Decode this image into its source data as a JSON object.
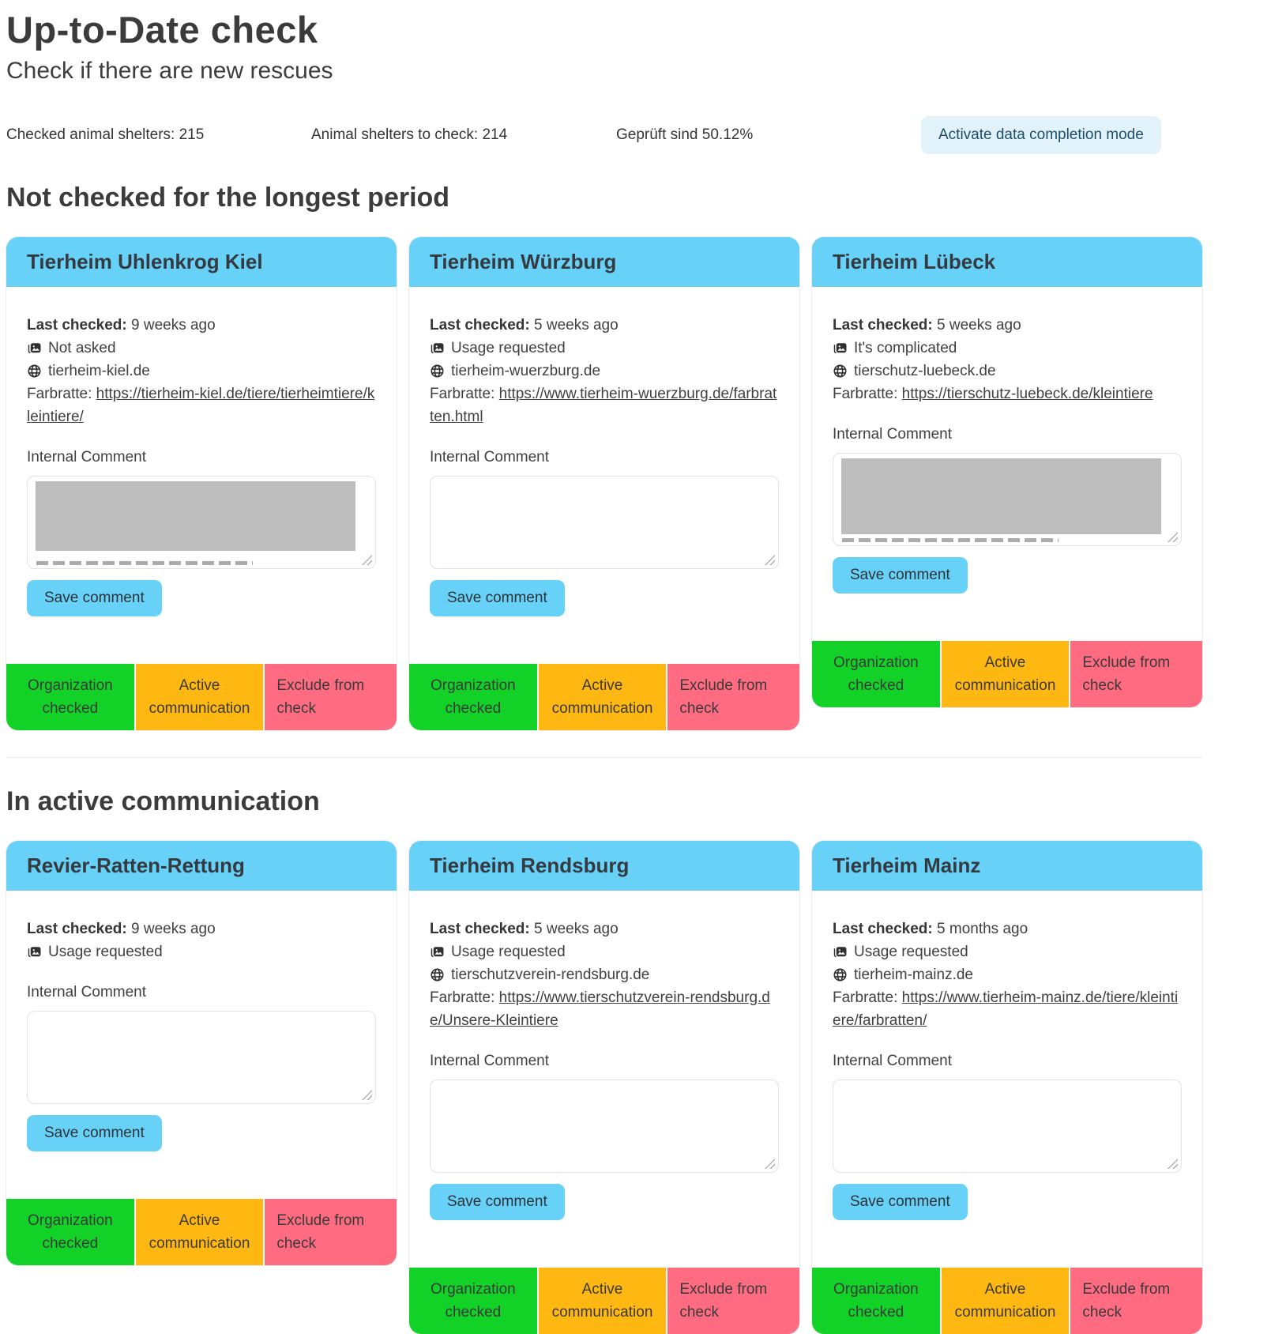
{
  "page": {
    "title": "Up-to-Date check",
    "subtitle": "Check if there are new rescues",
    "stats": [
      "Checked animal shelters: 215",
      "Animal shelters to check: 214",
      "Geprüft sind 50.12%"
    ],
    "activate_button_label": "Activate data completion mode"
  },
  "labels": {
    "last_checked": "Last checked:",
    "farbratte": "Farbratte:",
    "internal_comment": "Internal Comment",
    "save_comment": "Save comment",
    "organization_checked": "Organization checked",
    "active_communication": "Active communication",
    "exclude_from_check": "Exclude from check"
  },
  "icons": {
    "photo_status": "photo-stack-icon",
    "website": "globe-icon"
  },
  "colors": {
    "header_blue": "#67d1f7",
    "green": "#12d228",
    "orange": "#ffb812",
    "pink": "#ff6b81",
    "activate_bg": "#e1f2fb",
    "activate_text": "#1c4d67",
    "text_dark": "#3f4043",
    "redaction_gray": "#bdbdbd"
  },
  "sections": [
    {
      "title": "Not checked for the longest period",
      "cards": [
        {
          "name": "Tierheim Uhlenkrog Kiel",
          "last_checked": "9 weeks ago",
          "photo_status": "Not asked",
          "website": "tierheim-kiel.de",
          "farbratte_url": "https://tierheim-kiel.de/tiere/tierheimtiere/kleintiere/",
          "comment_redacted": true,
          "redaction_height": 88
        },
        {
          "name": "Tierheim Würzburg",
          "last_checked": "5 weeks ago",
          "photo_status": "Usage requested",
          "website": "tierheim-wuerzburg.de",
          "farbratte_url": "https://www.tierheim-wuerzburg.de/farbratten.html",
          "comment_redacted": false
        },
        {
          "name": "Tierheim Lübeck",
          "last_checked": "5 weeks ago",
          "photo_status": "It's complicated",
          "website": "tierschutz-luebeck.de",
          "farbratte_url": "https://tierschutz-luebeck.de/kleintiere",
          "comment_redacted": true,
          "redaction_height": 96
        }
      ]
    },
    {
      "title": "In active communication",
      "cards": [
        {
          "name": "Revier-Ratten-Rettung",
          "last_checked": "9 weeks ago",
          "photo_status": "Usage requested",
          "comment_redacted": false
        },
        {
          "name": "Tierheim Rendsburg",
          "last_checked": "5 weeks ago",
          "photo_status": "Usage requested",
          "website": "tierschutzverein-rendsburg.de",
          "farbratte_url": "https://www.tierschutzverein-rendsburg.de/Unsere-Kleintiere",
          "comment_redacted": false
        },
        {
          "name": "Tierheim Mainz",
          "last_checked": "5 months ago",
          "photo_status": "Usage requested",
          "website": "tierheim-mainz.de",
          "farbratte_url": "https://www.tierheim-mainz.de/tiere/kleintiere/farbratten/",
          "comment_redacted": false
        }
      ]
    }
  ]
}
